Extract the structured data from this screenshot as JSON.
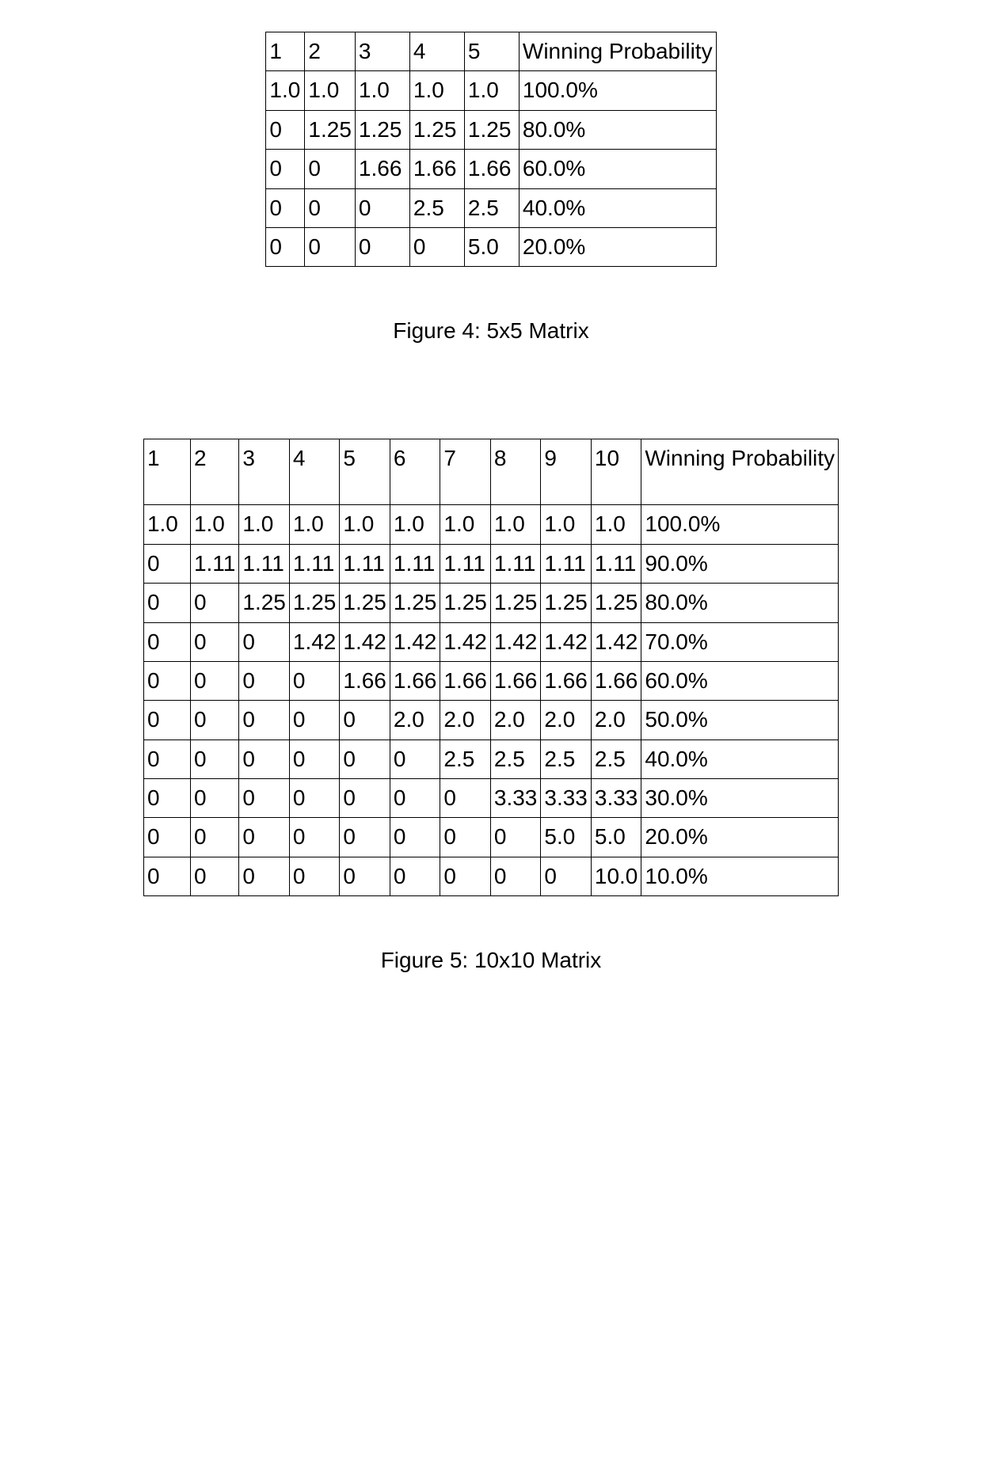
{
  "figure4": {
    "caption": "Figure 4: 5x5 Matrix",
    "columns": [
      "1",
      "2",
      "3",
      "4",
      "5",
      "Winning Probability"
    ],
    "rows": [
      [
        "1.0",
        "1.0",
        "1.0",
        "1.0",
        "1.0",
        "100.0%"
      ],
      [
        "0",
        "1.25",
        "1.25",
        "1.25",
        "1.25",
        "80.0%"
      ],
      [
        "0",
        "0",
        "1.66",
        "1.66",
        "1.66",
        "60.0%"
      ],
      [
        "0",
        "0",
        "0",
        "2.5",
        "2.5",
        "40.0%"
      ],
      [
        "0",
        "0",
        "0",
        "0",
        "5.0",
        "20.0%"
      ]
    ]
  },
  "figure5": {
    "caption": "Figure 5: 10x10 Matrix",
    "columns": [
      "1",
      "2",
      "3",
      "4",
      "5",
      "6",
      "7",
      "8",
      "9",
      "10",
      "Winning Probability"
    ],
    "rows": [
      [
        "1.0",
        "1.0",
        "1.0",
        "1.0",
        "1.0",
        "1.0",
        "1.0",
        "1.0",
        "1.0",
        "1.0",
        "100.0%"
      ],
      [
        "0",
        "1.11",
        "1.11",
        "1.11",
        "1.11",
        "1.11",
        "1.11",
        "1.11",
        "1.11",
        "1.11",
        "90.0%"
      ],
      [
        "0",
        "0",
        "1.25",
        "1.25",
        "1.25",
        "1.25",
        "1.25",
        "1.25",
        "1.25",
        "1.25",
        "80.0%"
      ],
      [
        "0",
        "0",
        "0",
        "1.42",
        "1.42",
        "1.42",
        "1.42",
        "1.42",
        "1.42",
        "1.42",
        "70.0%"
      ],
      [
        "0",
        "0",
        "0",
        "0",
        "1.66",
        "1.66",
        "1.66",
        "1.66",
        "1.66",
        "1.66",
        "60.0%"
      ],
      [
        "0",
        "0",
        "0",
        "0",
        "0",
        "2.0",
        "2.0",
        "2.0",
        "2.0",
        "2.0",
        "50.0%"
      ],
      [
        "0",
        "0",
        "0",
        "0",
        "0",
        "0",
        "2.5",
        "2.5",
        "2.5",
        "2.5",
        "40.0%"
      ],
      [
        "0",
        "0",
        "0",
        "0",
        "0",
        "0",
        "0",
        "3.33",
        "3.33",
        "3.33",
        "30.0%"
      ],
      [
        "0",
        "0",
        "0",
        "0",
        "0",
        "0",
        "0",
        "0",
        "5.0",
        "5.0",
        "20.0%"
      ],
      [
        "0",
        "0",
        "0",
        "0",
        "0",
        "0",
        "0",
        "0",
        "0",
        "10.0",
        "10.0%"
      ]
    ]
  },
  "style": {
    "background_color": "#ffffff",
    "border_color": "#000000",
    "text_color": "#000000",
    "font_family": "Arial",
    "cell_fontsize": 28,
    "caption_fontsize": 28,
    "border_width": 1.5
  }
}
